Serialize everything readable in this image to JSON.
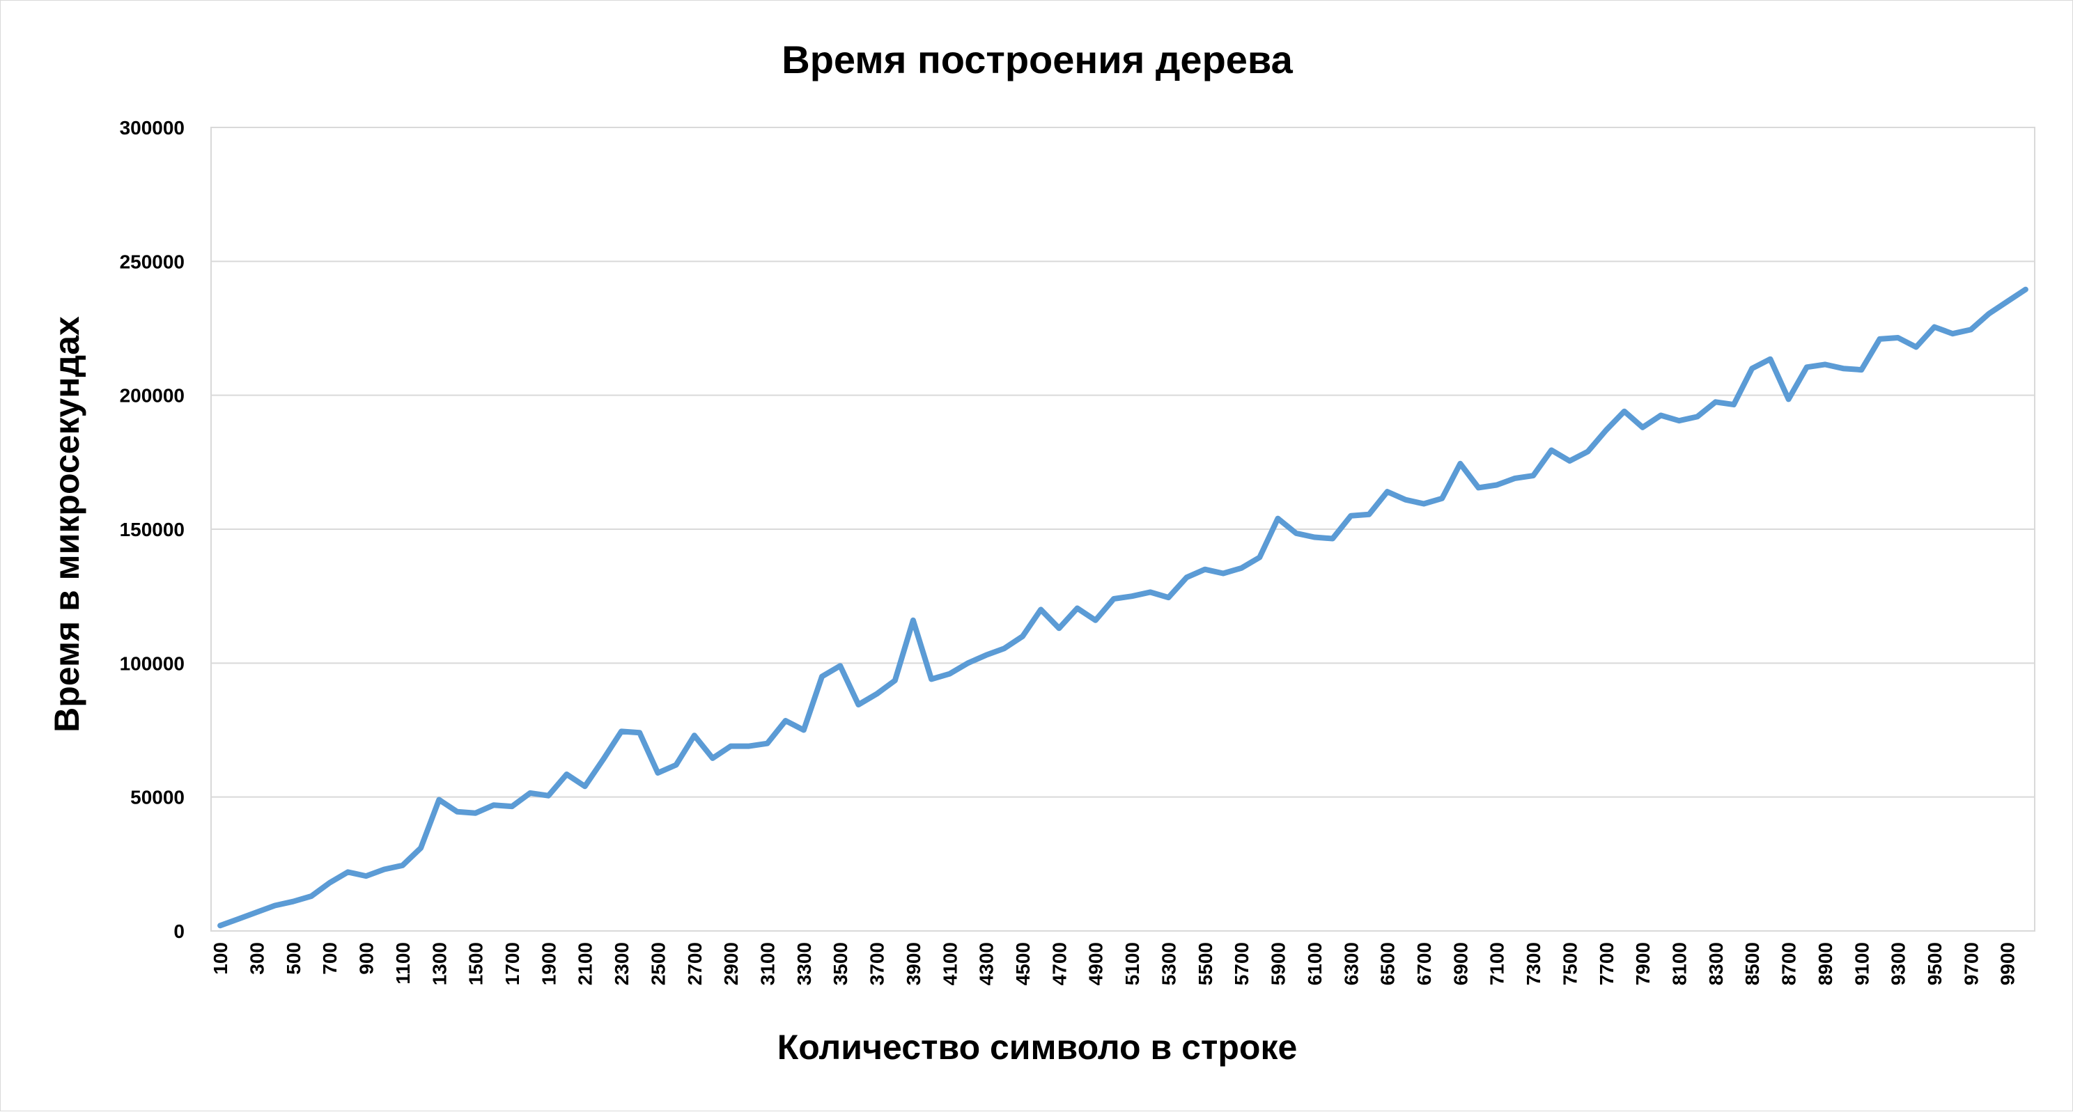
{
  "chart_data": {
    "type": "line",
    "title": "Время построения дерева",
    "xlabel": "Количество символо в строке",
    "ylabel": "Время в  микросекундах",
    "ylim": [
      0,
      300000
    ],
    "yticks": [
      "0",
      "50000",
      "100000",
      "150000",
      "200000",
      "250000",
      "300000"
    ],
    "grid": true,
    "legend": "none",
    "series_color": "#5B9BD5",
    "x": [
      100,
      200,
      300,
      400,
      500,
      600,
      700,
      800,
      900,
      1000,
      1100,
      1200,
      1300,
      1400,
      1500,
      1600,
      1700,
      1800,
      1900,
      2000,
      2100,
      2200,
      2300,
      2400,
      2500,
      2600,
      2700,
      2800,
      2900,
      3000,
      3100,
      3200,
      3300,
      3400,
      3500,
      3600,
      3700,
      3800,
      3900,
      4000,
      4100,
      4200,
      4300,
      4400,
      4500,
      4600,
      4700,
      4800,
      4900,
      5000,
      5100,
      5200,
      5300,
      5400,
      5500,
      5600,
      5700,
      5800,
      5900,
      6000,
      6100,
      6200,
      6300,
      6400,
      6500,
      6600,
      6700,
      6800,
      6900,
      7000,
      7100,
      7200,
      7300,
      7400,
      7500,
      7600,
      7700,
      7800,
      7900,
      8000,
      8100,
      8200,
      8300,
      8400,
      8500,
      8600,
      8700,
      8800,
      8900,
      9000,
      9100,
      9200,
      9300,
      9400,
      9500,
      9600,
      9700,
      9800,
      9900,
      10000
    ],
    "xtick_labels": [
      "100",
      "300",
      "500",
      "700",
      "900",
      "1100",
      "1300",
      "1500",
      "1700",
      "1900",
      "2100",
      "2300",
      "2500",
      "2700",
      "2900",
      "3100",
      "3300",
      "3500",
      "3700",
      "3900",
      "4100",
      "4300",
      "4500",
      "4700",
      "4900",
      "5100",
      "5300",
      "5500",
      "5700",
      "5900",
      "6100",
      "6300",
      "6500",
      "6700",
      "6900",
      "7100",
      "7300",
      "7500",
      "7700",
      "7900",
      "8100",
      "8300",
      "8500",
      "8700",
      "8900",
      "9100",
      "9300",
      "9500",
      "9700",
      "9900"
    ],
    "series": [
      {
        "values": [
          2000,
          4500,
          7000,
          9500,
          11000,
          13000,
          18000,
          22000,
          20500,
          23000,
          24500,
          31000,
          49000,
          44500,
          44000,
          47000,
          46500,
          51500,
          50500,
          58500,
          54000,
          64000,
          74500,
          74000,
          59000,
          62000,
          73000,
          64500,
          69000,
          69000,
          70000,
          78500,
          75000,
          95000,
          99000,
          84500,
          88500,
          93500,
          116000,
          94000,
          96000,
          100000,
          103000,
          105500,
          110000,
          120000,
          113000,
          120500,
          116000,
          124000,
          125000,
          126500,
          124500,
          132000,
          135000,
          133500,
          135500,
          139500,
          154000,
          148500,
          147000,
          146500,
          155000,
          155500,
          164000,
          161000,
          159500,
          161500,
          174500,
          165500,
          166500,
          169000,
          170000,
          179500,
          175500,
          179000,
          187000,
          194000,
          188000,
          192500,
          190500,
          192000,
          197500,
          196500,
          210000,
          213500,
          198500,
          210500,
          211500,
          210000,
          209500,
          221000,
          221500,
          218000,
          225500,
          223000,
          224500,
          230500,
          235000,
          239500
        ]
      }
    ]
  }
}
